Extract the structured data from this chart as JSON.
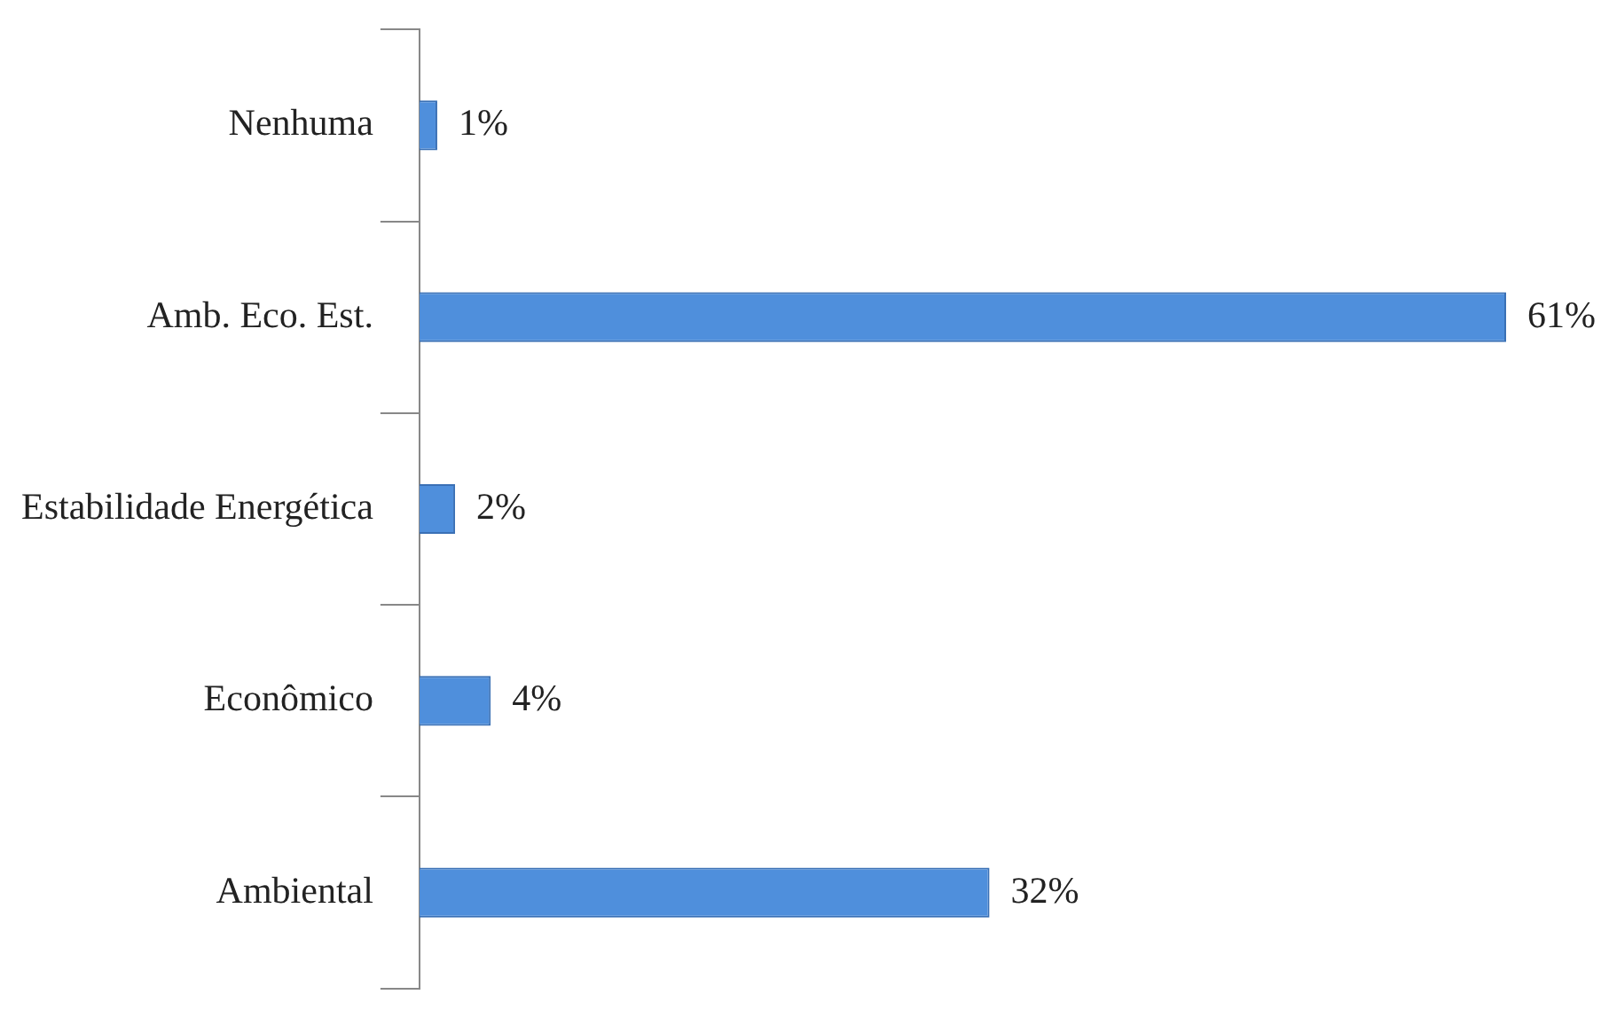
{
  "chart_data": {
    "type": "bar",
    "orientation": "horizontal",
    "categories": [
      "Nenhuma",
      "Amb. Eco. Est.",
      "Estabilidade Energética",
      "Econômico",
      "Ambiental"
    ],
    "values": [
      1,
      61,
      2,
      4,
      32
    ],
    "value_labels": [
      "1%",
      "61%",
      "2%",
      "4%",
      "32%"
    ],
    "color": "#4f8fdc",
    "legend": false,
    "tick_labels": "y"
  }
}
